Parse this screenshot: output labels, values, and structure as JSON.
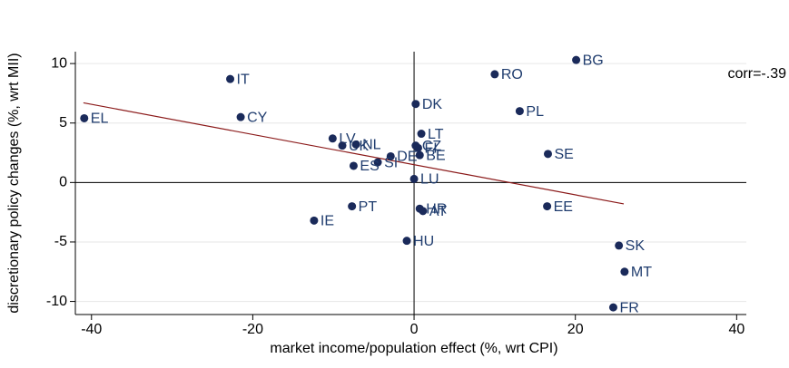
{
  "chart_data": {
    "type": "scatter",
    "xlabel": "market income/population effect (%, wrt CPI)",
    "ylabel": "discretionary policy changes (%, wrt MII)",
    "annotation": "corr=-.39",
    "labels": [
      "BG",
      "RO",
      "IT",
      "DK",
      "PL",
      "CY",
      "EL",
      "LT",
      "LV",
      "UK",
      "NL",
      "CZ",
      "FI",
      "DE",
      "SI",
      "ES",
      "BE",
      "SE",
      "LU",
      "PT",
      "EE",
      "IE",
      "HR",
      "AT",
      "HU",
      "SK",
      "MT",
      "FR"
    ],
    "x": [
      20.1,
      10.0,
      -22.8,
      0.2,
      13.1,
      -21.5,
      -40.9,
      0.9,
      -10.1,
      -8.9,
      -7.2,
      0.2,
      0.5,
      -2.9,
      -4.5,
      -7.5,
      0.7,
      16.6,
      0.0,
      -7.7,
      16.5,
      -12.4,
      0.7,
      1.1,
      -0.9,
      25.4,
      26.1,
      24.7
    ],
    "values": [
      10.3,
      9.1,
      8.7,
      6.6,
      6.0,
      5.5,
      5.4,
      4.1,
      3.7,
      3.1,
      3.2,
      3.1,
      2.9,
      2.2,
      1.7,
      1.4,
      2.3,
      2.4,
      0.3,
      -2.0,
      -2.0,
      -3.2,
      -2.2,
      -2.4,
      -4.9,
      -5.3,
      -7.5,
      -10.5
    ],
    "color": "#1a2a5a",
    "label_color": "#1f3c6e",
    "fit": {
      "x": [
        -41,
        26
      ],
      "y": [
        6.7,
        -1.8
      ],
      "color": "#8b1a1a"
    },
    "hlines": [
      0
    ],
    "vlines": [
      0
    ],
    "xlim": [
      -42,
      41.2
    ],
    "ylim": [
      -11.1,
      11.0
    ],
    "xticks": [
      -40,
      -20,
      0,
      20,
      40
    ],
    "yticks": [
      -10,
      -5,
      0,
      5,
      10
    ],
    "grid": true
  }
}
